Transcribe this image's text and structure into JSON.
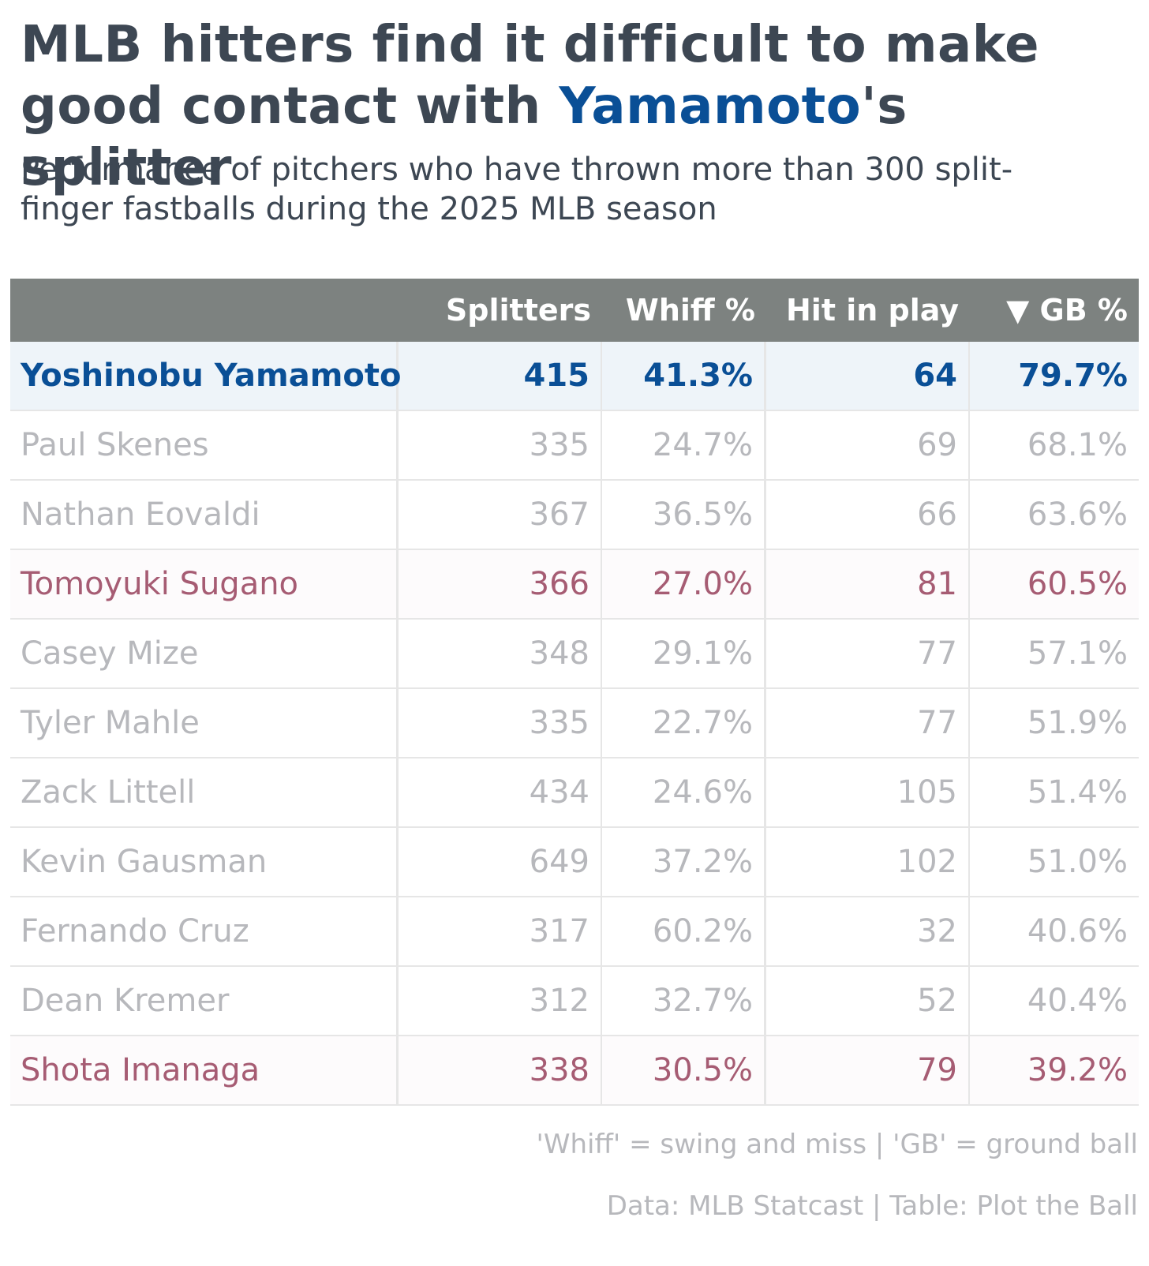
{
  "header": {
    "title_line1": "MLB hitters find it difficult to make",
    "title_line2_pre": "good contact with ",
    "title_line2_highlight": "Yamamoto",
    "title_line2_post": "'s splitter",
    "subtitle_line1": "Performance of pitchers who have thrown more than 300 split-",
    "subtitle_line2": "finger fastballs during the 2025 MLB season"
  },
  "colors": {
    "highlight_blue": "#0a4f96",
    "highlight_red": "#a65c73",
    "muted_text": "#b7b8bc",
    "header_bg": "#7d8280"
  },
  "chart_data": {
    "type": "table",
    "columns": [
      "",
      "Splitters",
      "Whiff %",
      "Hit in play",
      "▼ GB %"
    ],
    "rows": [
      {
        "name": "Yoshinobu Yamamoto",
        "splitters": "415",
        "whiff": "41.3%",
        "hit_in_play": "64",
        "gb": "79.7%",
        "highlight": "blue"
      },
      {
        "name": "Paul Skenes",
        "splitters": "335",
        "whiff": "24.7%",
        "hit_in_play": "69",
        "gb": "68.1%",
        "highlight": "none"
      },
      {
        "name": "Nathan Eovaldi",
        "splitters": "367",
        "whiff": "36.5%",
        "hit_in_play": "66",
        "gb": "63.6%",
        "highlight": "none"
      },
      {
        "name": "Tomoyuki Sugano",
        "splitters": "366",
        "whiff": "27.0%",
        "hit_in_play": "81",
        "gb": "60.5%",
        "highlight": "red"
      },
      {
        "name": "Casey Mize",
        "splitters": "348",
        "whiff": "29.1%",
        "hit_in_play": "77",
        "gb": "57.1%",
        "highlight": "none"
      },
      {
        "name": "Tyler Mahle",
        "splitters": "335",
        "whiff": "22.7%",
        "hit_in_play": "77",
        "gb": "51.9%",
        "highlight": "none"
      },
      {
        "name": "Zack Littell",
        "splitters": "434",
        "whiff": "24.6%",
        "hit_in_play": "105",
        "gb": "51.4%",
        "highlight": "none"
      },
      {
        "name": "Kevin Gausman",
        "splitters": "649",
        "whiff": "37.2%",
        "hit_in_play": "102",
        "gb": "51.0%",
        "highlight": "none"
      },
      {
        "name": "Fernando Cruz",
        "splitters": "317",
        "whiff": "60.2%",
        "hit_in_play": "32",
        "gb": "40.6%",
        "highlight": "none"
      },
      {
        "name": "Dean Kremer",
        "splitters": "312",
        "whiff": "32.7%",
        "hit_in_play": "52",
        "gb": "40.4%",
        "highlight": "none"
      },
      {
        "name": "Shota Imanaga",
        "splitters": "338",
        "whiff": "30.5%",
        "hit_in_play": "79",
        "gb": "39.2%",
        "highlight": "red"
      }
    ]
  },
  "footer": {
    "note": "'Whiff' = swing and miss | 'GB' = ground ball",
    "source": "Data: MLB Statcast | Table: Plot the Ball"
  }
}
